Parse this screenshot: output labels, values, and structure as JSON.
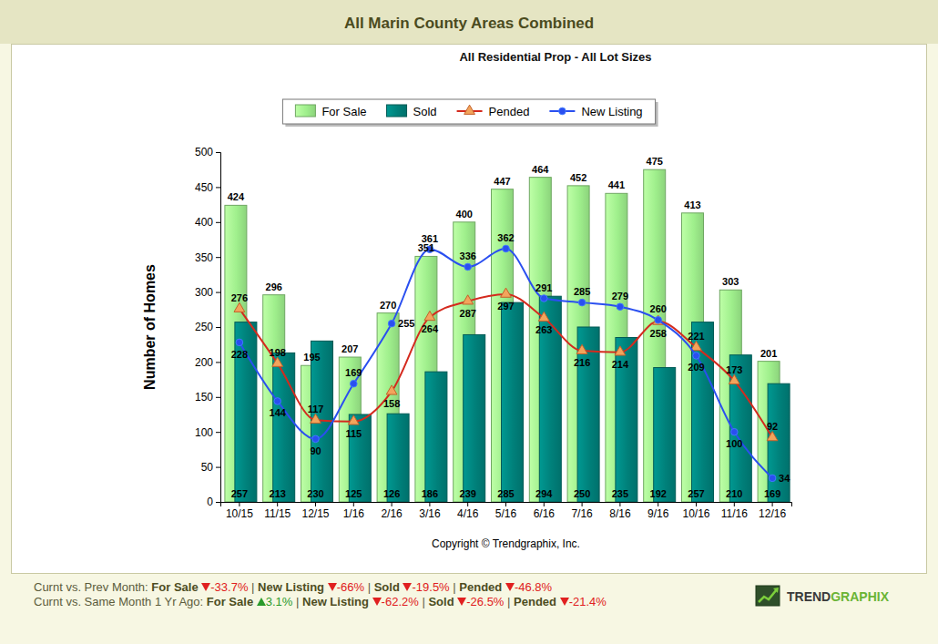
{
  "chart_data": {
    "type": "bar",
    "title": "All Marin County Areas Combined",
    "subtitle": "All Residential Prop - All Lot Sizes",
    "y_label": "Number of Homes",
    "annotations": [
      "Copyright © Trendgraphix, Inc."
    ],
    "categories": [
      "10/15",
      "11/15",
      "12/15",
      "1/16",
      "2/16",
      "3/16",
      "4/16",
      "5/16",
      "6/16",
      "7/16",
      "8/16",
      "9/16",
      "10/16",
      "11/16",
      "12/16"
    ],
    "series": [
      {
        "name": "For Sale",
        "type": "bar",
        "color": "#9fef8c",
        "values": [
          424,
          296,
          195,
          207,
          270,
          351,
          400,
          447,
          464,
          452,
          441,
          475,
          413,
          303,
          201
        ]
      },
      {
        "name": "Sold",
        "type": "bar",
        "color": "#00807a",
        "values": [
          257,
          213,
          230,
          125,
          126,
          186,
          239,
          285,
          294,
          250,
          235,
          192,
          257,
          210,
          169
        ]
      },
      {
        "name": "Pended",
        "type": "line",
        "color": "#d42a1e",
        "marker": "triangle",
        "line_style": "smooth",
        "values": [
          276,
          198,
          117,
          115,
          158,
          264,
          287,
          297,
          263,
          216,
          214,
          258,
          221,
          173,
          92
        ]
      },
      {
        "name": "New Listing",
        "type": "line",
        "color": "#2a4ff0",
        "marker": "circle",
        "line_style": "smooth",
        "values": [
          228,
          144,
          90,
          169,
          255,
          361,
          336,
          362,
          291,
          285,
          279,
          260,
          209,
          100,
          34
        ]
      }
    ],
    "ylim": [
      0,
      500
    ],
    "yticks": [
      0,
      50,
      100,
      150,
      200,
      250,
      300,
      350,
      400,
      450,
      500
    ],
    "grid": false,
    "legend": "top",
    "data_labels": true
  },
  "page": {
    "comparisons": [
      {
        "label": "Curnt vs. Prev Month:",
        "items": [
          {
            "name": "For Sale",
            "change": "-33.7%",
            "direction": "down"
          },
          {
            "name": "New Listing",
            "change": "-66%",
            "direction": "down"
          },
          {
            "name": "Sold",
            "change": "-19.5%",
            "direction": "down"
          },
          {
            "name": "Pended",
            "change": "-46.8%",
            "direction": "down"
          }
        ]
      },
      {
        "label": "Curnt vs. Same Month 1 Yr Ago:",
        "items": [
          {
            "name": "For Sale",
            "change": "3.1%",
            "direction": "up"
          },
          {
            "name": "New Listing",
            "change": "-62.2%",
            "direction": "down"
          },
          {
            "name": "Sold",
            "change": "-26.5%",
            "direction": "down"
          },
          {
            "name": "Pended",
            "change": "-21.4%",
            "direction": "down"
          }
        ]
      }
    ],
    "separator": "|",
    "logo": [
      "TREND",
      "GRAPHIX"
    ]
  }
}
